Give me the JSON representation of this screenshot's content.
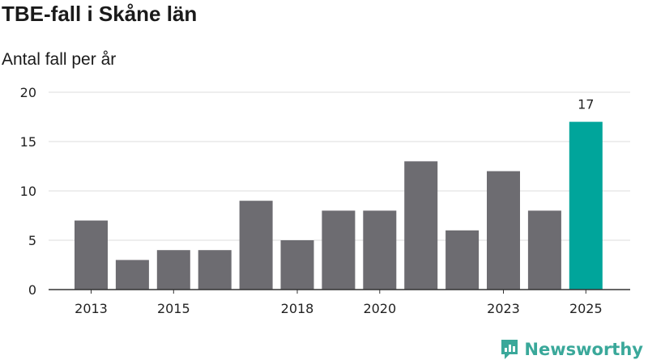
{
  "title": "TBE-fall i Skåne län",
  "subtitle": "Antal fall per år",
  "brand": "Newsworthy",
  "colors": {
    "bar": "#6d6c71",
    "highlight": "#00a59b",
    "grid": "#dddddd",
    "axis": "#333333",
    "brand": "#3aa89a"
  },
  "chart_data": {
    "type": "bar",
    "categories": [
      "2013",
      "2014",
      "2015",
      "2016",
      "2017",
      "2018",
      "2019",
      "2020",
      "2021",
      "2022",
      "2023",
      "2024",
      "2025"
    ],
    "values": [
      7,
      3,
      4,
      4,
      9,
      5,
      8,
      8,
      13,
      6,
      12,
      8,
      17
    ],
    "x_tick_labels": [
      "2013",
      "2015",
      "2018",
      "2020",
      "2023",
      "2025"
    ],
    "y_ticks": [
      0,
      5,
      10,
      15,
      20
    ],
    "ylim": [
      0,
      20
    ],
    "highlight_category": "2025",
    "data_labels": [
      {
        "category": "2025",
        "text": "17"
      }
    ],
    "grid": true,
    "legend": "none"
  }
}
